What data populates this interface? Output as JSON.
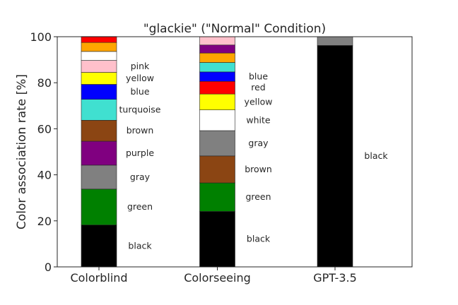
{
  "chart_data": {
    "type": "bar",
    "stacked": true,
    "title": "\"glackie\" (\"Normal\" Condition)",
    "xlabel": "",
    "ylabel": "Color association rate [%]",
    "ylim": [
      0,
      100
    ],
    "yticks": [
      0,
      20,
      40,
      60,
      80,
      100
    ],
    "grid": false,
    "categories": [
      "Colorblind",
      "Colorseeing",
      "GPT-3.5"
    ],
    "segment_colors": {
      "black": "#000000",
      "green": "#008000",
      "gray": "#808080",
      "purple": "#800080",
      "brown": "#8b4513",
      "turquoise": "#40e0d0",
      "blue": "#0000ff",
      "yellow": "#ffff00",
      "pink": "#ffc0cb",
      "white": "#ffffff",
      "orange": "#ffa500",
      "red": "#ff0000"
    },
    "bars": [
      {
        "category": "Colorblind",
        "segments": [
          {
            "color": "black",
            "value": 18.2,
            "label": "black"
          },
          {
            "color": "green",
            "value": 15.6,
            "label": "green"
          },
          {
            "color": "gray",
            "value": 10.4,
            "label": "gray"
          },
          {
            "color": "purple",
            "value": 10.4,
            "label": "purple"
          },
          {
            "color": "brown",
            "value": 9.1,
            "label": "brown"
          },
          {
            "color": "turquoise",
            "value": 9.1,
            "label": "turquoise"
          },
          {
            "color": "blue",
            "value": 6.5,
            "label": "blue"
          },
          {
            "color": "yellow",
            "value": 5.2,
            "label": "yellow"
          },
          {
            "color": "pink",
            "value": 5.2,
            "label": "pink"
          },
          {
            "color": "white",
            "value": 3.9,
            "label": ""
          },
          {
            "color": "orange",
            "value": 3.9,
            "label": ""
          },
          {
            "color": "red",
            "value": 2.6,
            "label": ""
          }
        ]
      },
      {
        "category": "Colorseeing",
        "segments": [
          {
            "color": "black",
            "value": 24.1,
            "label": "black"
          },
          {
            "color": "green",
            "value": 12.4,
            "label": "green"
          },
          {
            "color": "brown",
            "value": 11.7,
            "label": "brown"
          },
          {
            "color": "gray",
            "value": 11.0,
            "label": "gray"
          },
          {
            "color": "white",
            "value": 9.0,
            "label": "white"
          },
          {
            "color": "yellow",
            "value": 6.9,
            "label": "yellow"
          },
          {
            "color": "red",
            "value": 5.5,
            "label": "red"
          },
          {
            "color": "blue",
            "value": 4.1,
            "label": "blue"
          },
          {
            "color": "turquoise",
            "value": 4.1,
            "label": ""
          },
          {
            "color": "orange",
            "value": 4.1,
            "label": ""
          },
          {
            "color": "purple",
            "value": 3.5,
            "label": ""
          },
          {
            "color": "pink",
            "value": 3.6,
            "label": ""
          }
        ]
      },
      {
        "category": "GPT-3.5",
        "segments": [
          {
            "color": "black",
            "value": 96.2,
            "label": "black"
          },
          {
            "color": "gray",
            "value": 3.8,
            "label": ""
          }
        ]
      }
    ]
  }
}
